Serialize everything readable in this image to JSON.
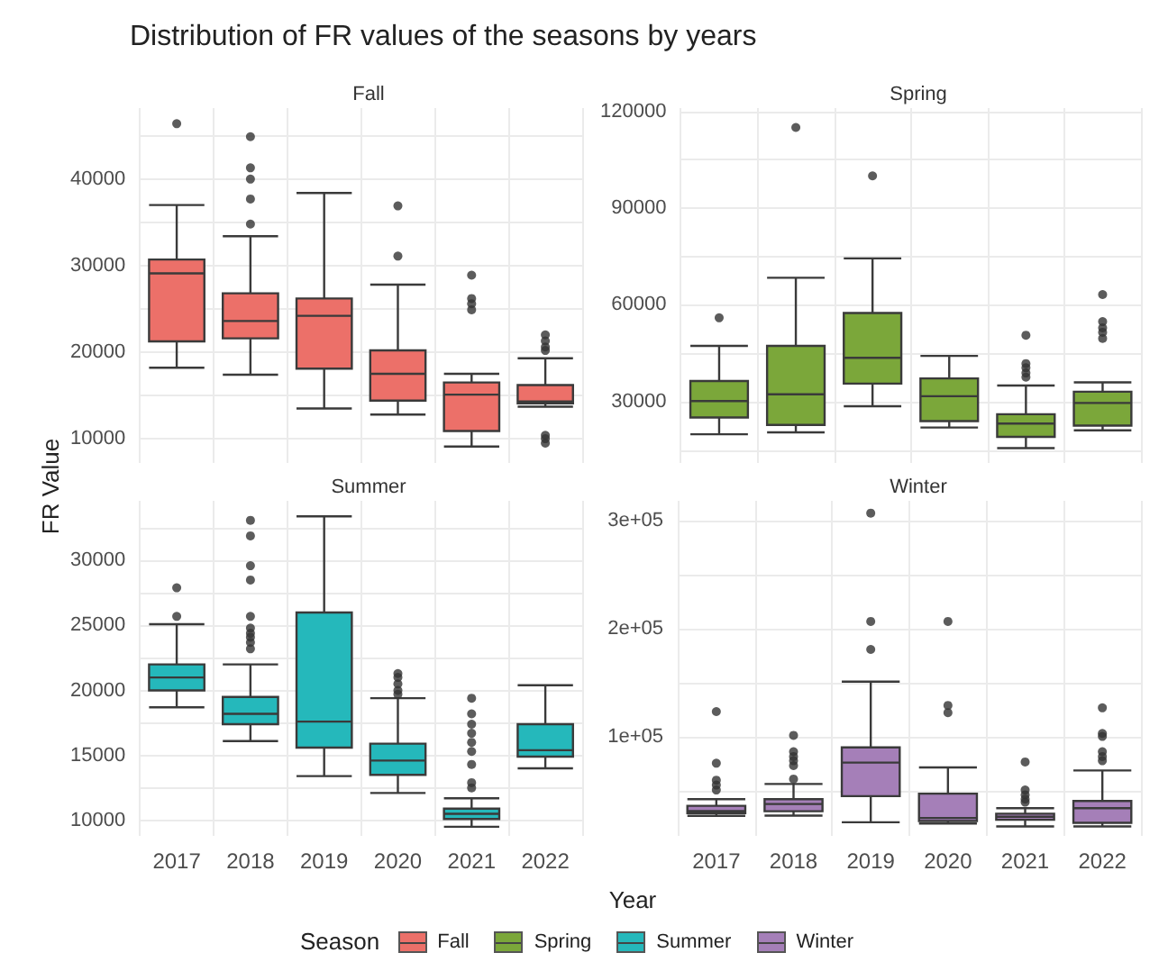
{
  "chart_data": [
    {
      "type": "box",
      "title": "Distribution of FR values of the seasons by years",
      "subtitle": "Fall",
      "ylabel": "FR Value",
      "legend_title": "Season",
      "legend": "bottom",
      "grid": true,
      "tick_labels": "y",
      "categories": [
        "2017",
        "2018",
        "2019",
        "2020",
        "2021",
        "2022"
      ],
      "ylim": [
        7200,
        48200
      ],
      "yticks": [
        10000,
        {
          "value": 15000,
          "label": null
        },
        20000,
        {
          "value": 25000,
          "label": null
        },
        30000,
        {
          "value": 35000,
          "label": null
        },
        40000,
        {
          "value": 45000,
          "label": null
        }
      ],
      "series": [
        {
          "name": "Fall",
          "color": "#ec7069",
          "boxes": [
            {
              "low": 18200,
              "q1": 21250,
              "median": 29100,
              "q3": 30700,
              "high": 37000,
              "outliers": [
                46400
              ]
            },
            {
              "low": 17400,
              "q1": 21600,
              "median": 23600,
              "q3": 26800,
              "high": 33400,
              "outliers": [
                44900,
                41300,
                40000,
                37700,
                34800
              ]
            },
            {
              "low": 13500,
              "q1": 18100,
              "median": 24200,
              "q3": 26200,
              "high": 38400
            },
            {
              "low": 12800,
              "q1": 14400,
              "median": 17500,
              "q3": 20200,
              "high": 27800,
              "outliers": [
                36900,
                31100
              ]
            },
            {
              "low": 9100,
              "q1": 10900,
              "median": 15100,
              "q3": 16500,
              "high": 17500,
              "outliers": [
                28900,
                26200,
                25600,
                24900
              ]
            },
            {
              "low": 13700,
              "q1": 14100,
              "median": 14300,
              "q3": 16200,
              "high": 19300,
              "outliers": [
                22000,
                21300,
                20600,
                20200,
                10400,
                10000,
                9500
              ]
            }
          ]
        }
      ]
    },
    {
      "type": "box",
      "subtitle": "Spring",
      "grid": true,
      "tick_labels": "y",
      "categories": [
        "2017",
        "2018",
        "2019",
        "2020",
        "2021",
        "2022"
      ],
      "ylim": [
        11000,
        121000
      ],
      "yticks": [
        {
          "value": 15000,
          "label": null
        },
        30000,
        {
          "value": 45000,
          "label": null
        },
        60000,
        {
          "value": 75000,
          "label": null
        },
        90000,
        {
          "value": 105000,
          "label": null
        },
        120000
      ],
      "series": [
        {
          "name": "Spring",
          "color": "#7ba73a",
          "boxes": [
            {
              "low": 19900,
              "q1": 25100,
              "median": 30200,
              "q3": 36400,
              "high": 47300,
              "outliers": [
                56000
              ]
            },
            {
              "low": 20500,
              "q1": 22800,
              "median": 32300,
              "q3": 47300,
              "high": 68400,
              "outliers": [
                115000
              ]
            },
            {
              "low": 28600,
              "q1": 35600,
              "median": 43600,
              "q3": 57500,
              "high": 74400,
              "outliers": [
                100000
              ]
            },
            {
              "low": 22000,
              "q1": 24000,
              "median": 31700,
              "q3": 37200,
              "high": 44200
            },
            {
              "low": 15600,
              "q1": 19100,
              "median": 23200,
              "q3": 26100,
              "high": 35000,
              "outliers": [
                50600,
                41800,
                40500,
                38900,
                37600
              ]
            },
            {
              "low": 21100,
              "q1": 22600,
              "median": 29600,
              "q3": 33100,
              "high": 36000,
              "outliers": [
                63200,
                54800,
                52900,
                51500,
                49600
              ]
            }
          ]
        }
      ]
    },
    {
      "type": "box",
      "subtitle": "Summer",
      "grid": true,
      "categories": [
        "2017",
        "2018",
        "2019",
        "2020",
        "2021",
        "2022"
      ],
      "ylim": [
        8800,
        34600
      ],
      "yticks": [
        10000,
        {
          "value": 12500,
          "label": null
        },
        15000,
        {
          "value": 17500,
          "label": null
        },
        20000,
        {
          "value": 22500,
          "label": null
        },
        25000,
        {
          "value": 27500,
          "label": null
        },
        30000,
        {
          "value": 32500,
          "label": null
        }
      ],
      "series": [
        {
          "name": "Summer",
          "color": "#25b8bb",
          "boxes": [
            {
              "low": 18700,
              "q1": 20000,
              "median": 21000,
              "q3": 22000,
              "high": 25100,
              "outliers": [
                27900,
                25700
              ]
            },
            {
              "low": 16100,
              "q1": 17400,
              "median": 18200,
              "q3": 19500,
              "high": 22000,
              "outliers": [
                33100,
                31900,
                29600,
                28500,
                25700,
                24800,
                24400,
                24100,
                23700,
                23200
              ]
            },
            {
              "low": 13400,
              "q1": 15600,
              "median": 17600,
              "q3": 26000,
              "high": 33400
            },
            {
              "low": 12100,
              "q1": 13500,
              "median": 14600,
              "q3": 15900,
              "high": 19400,
              "outliers": [
                21300,
                21000,
                20500,
                20000,
                19700
              ]
            },
            {
              "low": 9500,
              "q1": 10100,
              "median": 10500,
              "q3": 10900,
              "high": 11700,
              "outliers": [
                19400,
                18200,
                17400,
                16700,
                16000,
                15300,
                14300,
                12900,
                12500
              ]
            },
            {
              "low": 14000,
              "q1": 14900,
              "median": 15400,
              "q3": 17400,
              "high": 20400
            }
          ]
        }
      ]
    },
    {
      "type": "box",
      "subtitle": "Winter",
      "xlabel": "Year",
      "grid": true,
      "categories": [
        "2017",
        "2018",
        "2019",
        "2020",
        "2021",
        "2022"
      ],
      "ylim": [
        8000,
        318000
      ],
      "yticks": [
        {
          "value": 50000,
          "label": null
        },
        {
          "value": 100000,
          "label": "1e+05"
        },
        {
          "value": 150000,
          "label": null
        },
        {
          "value": 200000,
          "label": "2e+05"
        },
        {
          "value": 250000,
          "label": null
        },
        {
          "value": 300000,
          "label": "3e+05"
        }
      ],
      "series": [
        {
          "name": "Winter",
          "color": "#a57fb8",
          "boxes": [
            {
              "low": 26500,
              "q1": 29000,
              "median": 31000,
              "q3": 35800,
              "high": 42000,
              "outliers": [
                123000,
                75200,
                59500,
                55000,
                50400
              ]
            },
            {
              "low": 26800,
              "q1": 30800,
              "median": 37500,
              "q3": 42000,
              "high": 56000,
              "outliers": [
                101000,
                85900,
                81400,
                77500,
                73000,
                60600
              ]
            },
            {
              "low": 20600,
              "q1": 44800,
              "median": 75800,
              "q3": 89900,
              "high": 150700,
              "outliers": [
                306600,
                206400,
                180500
              ]
            },
            {
              "low": 19500,
              "q1": 21700,
              "median": 24600,
              "q3": 47100,
              "high": 71300,
              "outliers": [
                206400,
                128700,
                122000
              ]
            },
            {
              "low": 16700,
              "q1": 22900,
              "median": 25700,
              "q3": 28500,
              "high": 33600,
              "outliers": [
                76400,
                50400,
                46000,
                42000,
                39200
              ]
            },
            {
              "low": 16700,
              "q1": 20100,
              "median": 33600,
              "q3": 40300,
              "high": 68500,
              "outliers": [
                126500,
                102800,
                100000,
                85900,
                81400,
                77500
              ]
            }
          ]
        }
      ]
    }
  ]
}
